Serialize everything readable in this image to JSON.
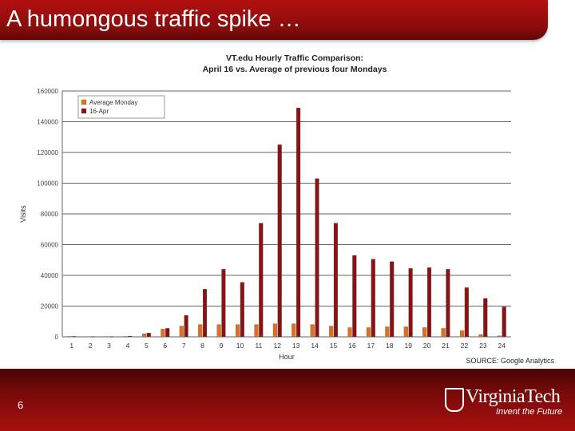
{
  "slide": {
    "title": "A humongous traffic spike …",
    "number": "6",
    "logo_name": "VirginiaTech",
    "logo_tagline": "Invent the Future"
  },
  "colors": {
    "series_average": "#e07020",
    "series_apr": "#8b1212",
    "title_bar": "#9e0e0e",
    "footer": "#7a0a0a"
  },
  "chart_data": {
    "type": "bar",
    "title_line1": "VT.edu Hourly Traffic Comparison:",
    "title_line2": "April 16 vs. Average of previous four Mondays",
    "xlabel": "Hour",
    "ylabel": "Visits",
    "source": "SOURCE: Google Analytics",
    "ylim": [
      0,
      160000
    ],
    "yticks": [
      "0",
      "20000",
      "40000",
      "60000",
      "80000",
      "100000",
      "120000",
      "140000",
      "160000"
    ],
    "categories": [
      "1",
      "2",
      "3",
      "4",
      "5",
      "6",
      "7",
      "8",
      "9",
      "10",
      "11",
      "12",
      "13",
      "14",
      "15",
      "16",
      "17",
      "18",
      "19",
      "20",
      "21",
      "22",
      "23",
      "24"
    ],
    "legend_position": "top-left",
    "grid": true,
    "series": [
      {
        "name": "Average Monday",
        "values": [
          300,
          200,
          200,
          300,
          2000,
          5000,
          7000,
          8000,
          8000,
          8000,
          8000,
          8500,
          8500,
          8000,
          7000,
          6000,
          6000,
          6500,
          6500,
          6000,
          5500,
          4000,
          1500,
          700
        ]
      },
      {
        "name": "16-Apr",
        "values": [
          300,
          200,
          200,
          500,
          2500,
          5500,
          14000,
          31000,
          44000,
          35500,
          74000,
          125000,
          149000,
          103000,
          74000,
          53000,
          50500,
          49000,
          44500,
          45000,
          44000,
          32000,
          25000,
          19500
        ]
      }
    ]
  }
}
